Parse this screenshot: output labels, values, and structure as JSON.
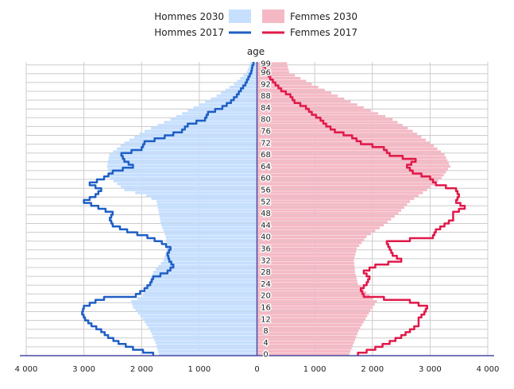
{
  "chart_data": {
    "type": "population-pyramid",
    "title": "",
    "axis_title_center": "age",
    "x_ticks": [
      -4000,
      -3000,
      -2000,
      -1000,
      0,
      1000,
      2000,
      3000,
      4000
    ],
    "x_tick_labels": [
      "4 000",
      "3 000",
      "2 000",
      "1 000",
      "0",
      "1 000",
      "2 000",
      "3 000",
      "4 000"
    ],
    "xlim": [
      -4000,
      4000
    ],
    "age_ticks": [
      0,
      4,
      8,
      12,
      16,
      20,
      24,
      28,
      32,
      36,
      40,
      44,
      48,
      52,
      56,
      60,
      64,
      68,
      72,
      76,
      80,
      84,
      88,
      92,
      96,
      99
    ],
    "age_tick_labels": [
      "0",
      "4",
      "8",
      "12",
      "16",
      "20",
      "24",
      "28",
      "32",
      "36",
      "40",
      "44",
      "48",
      "52",
      "56",
      "60",
      "64",
      "68",
      "72",
      "76",
      "80",
      "84",
      "88",
      "92",
      "96",
      "99"
    ],
    "ylim": [
      0,
      99
    ],
    "legend": [
      {
        "label": "Hommes 2030",
        "kind": "bar",
        "color": "#c6dfff"
      },
      {
        "label": "Femmes 2030",
        "kind": "bar",
        "color": "#f4b9c5"
      },
      {
        "label": "Hommes 2017",
        "kind": "line",
        "color": "#1f5fc4"
      },
      {
        "label": "Femmes 2017",
        "kind": "line",
        "color": "#e0194a"
      }
    ],
    "colors": {
      "men_2030": "#c6dfff",
      "women_2030": "#f4b9c5",
      "men_2017": "#1f5fc4",
      "women_2017": "#e0194a",
      "axis": "#4a4aa0",
      "grid": "#cccccc"
    },
    "series_bars": {
      "men_2030": {
        "anchor_ages": [
          0,
          4,
          8,
          12,
          16,
          18,
          20,
          24,
          28,
          32,
          36,
          40,
          44,
          48,
          52,
          54,
          56,
          60,
          64,
          68,
          72,
          76,
          80,
          84,
          88,
          92,
          96,
          99
        ],
        "anchor_values": [
          1700,
          1760,
          1850,
          1980,
          2150,
          2180,
          1980,
          1870,
          1800,
          1620,
          1560,
          1580,
          1660,
          1700,
          1740,
          1920,
          2300,
          2550,
          2600,
          2560,
          2300,
          1950,
          1500,
          1100,
          700,
          400,
          180,
          120
        ]
      },
      "women_2030": {
        "anchor_ages": [
          0,
          4,
          8,
          12,
          16,
          18,
          20,
          24,
          28,
          32,
          36,
          40,
          44,
          48,
          52,
          54,
          56,
          60,
          64,
          68,
          72,
          76,
          80,
          84,
          88,
          92,
          96,
          99
        ],
        "anchor_values": [
          1600,
          1680,
          1760,
          1880,
          2000,
          2080,
          1950,
          1750,
          1700,
          1680,
          1730,
          1900,
          2200,
          2450,
          2650,
          2800,
          2950,
          3200,
          3350,
          3250,
          3000,
          2700,
          2350,
          1850,
          1400,
          950,
          560,
          520
        ]
      }
    },
    "series_lines": {
      "men_2017": {
        "anchor_ages": [
          0,
          2,
          4,
          6,
          8,
          10,
          12,
          14,
          16,
          18,
          19,
          20,
          22,
          24,
          26,
          28,
          30,
          32,
          34,
          36,
          38,
          40,
          42,
          44,
          46,
          48,
          50,
          52,
          54,
          56,
          58,
          60,
          62,
          64,
          66,
          68,
          70,
          72,
          74,
          76,
          78,
          80,
          82,
          84,
          86,
          88,
          90,
          92,
          94,
          96,
          98,
          99
        ],
        "anchor_values": [
          1800,
          2150,
          2400,
          2580,
          2700,
          2870,
          2980,
          3030,
          3000,
          2800,
          2650,
          2100,
          1950,
          1850,
          1800,
          1550,
          1450,
          1520,
          1550,
          1500,
          1650,
          1900,
          2250,
          2500,
          2550,
          2500,
          2750,
          3000,
          2800,
          2700,
          2900,
          2650,
          2500,
          2150,
          2300,
          2350,
          2000,
          1950,
          1600,
          1300,
          1200,
          900,
          850,
          600,
          450,
          350,
          280,
          200,
          150,
          100,
          80,
          60
        ]
      },
      "women_2017": {
        "anchor_ages": [
          0,
          2,
          4,
          6,
          8,
          10,
          12,
          14,
          16,
          18,
          19,
          20,
          22,
          24,
          26,
          28,
          30,
          32,
          34,
          36,
          38,
          40,
          42,
          44,
          46,
          48,
          50,
          52,
          54,
          56,
          58,
          60,
          62,
          64,
          66,
          68,
          70,
          72,
          74,
          76,
          78,
          80,
          82,
          84,
          86,
          88,
          90,
          92,
          94,
          96,
          98,
          99
        ],
        "anchor_values": [
          1750,
          2050,
          2300,
          2500,
          2650,
          2800,
          2800,
          2900,
          2950,
          2650,
          2200,
          1850,
          1800,
          1900,
          1950,
          1850,
          2050,
          2500,
          2350,
          2300,
          2250,
          3050,
          3100,
          3250,
          3400,
          3400,
          3600,
          3450,
          3500,
          3450,
          3100,
          3000,
          2700,
          2600,
          2750,
          2300,
          2200,
          1800,
          1650,
          1350,
          1200,
          1100,
          950,
          850,
          650,
          580,
          420,
          320,
          230,
          170,
          110,
          90
        ]
      }
    }
  }
}
